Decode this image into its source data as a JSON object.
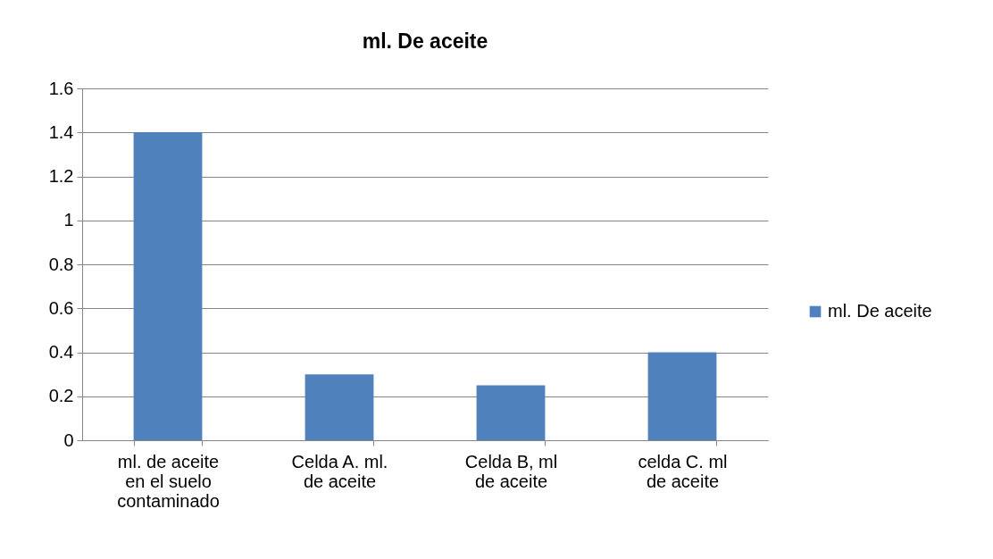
{
  "chart_data": {
    "type": "bar",
    "title": "ml. De aceite",
    "categories": [
      "ml. de aceite en el suelo contaminado",
      "Celda A. ml. de aceite",
      "Celda B, ml de aceite",
      "celda C. ml de aceite"
    ],
    "series": [
      {
        "name": "ml. De aceite",
        "color": "#4f81bd",
        "values": [
          1.4,
          0.3,
          0.25,
          0.4
        ]
      }
    ],
    "ylim": [
      0,
      1.6
    ],
    "yticks": [
      0,
      0.2,
      0.4,
      0.6,
      0.8,
      1,
      1.2,
      1.4,
      1.6
    ],
    "grid": "y",
    "legend": "right"
  }
}
